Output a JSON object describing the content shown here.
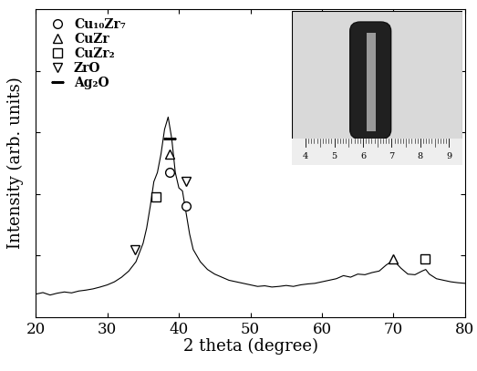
{
  "chart_data": {
    "type": "line",
    "x_label": "2 theta (degree)",
    "y_label": "Intensity (arb. units)",
    "xlim": [
      20,
      80
    ],
    "xticks": [
      20,
      30,
      40,
      50,
      60,
      70,
      80
    ],
    "ylim": [
      0,
      1
    ],
    "yticks": [
      0.2,
      0.4,
      0.6,
      0.8
    ],
    "tick_labels": "x",
    "legend": "upper left",
    "series": [
      {
        "type": "line",
        "color": "#000000",
        "x": [
          20,
          21,
          22,
          23,
          24,
          25,
          26,
          27,
          28,
          29,
          30,
          31,
          32,
          33,
          34,
          35,
          35.5,
          36,
          36.5,
          37,
          37.5,
          38,
          38.5,
          39,
          39.5,
          40,
          40.5,
          41,
          41.5,
          42,
          43,
          44,
          45,
          46,
          47,
          48,
          49,
          50,
          51,
          52,
          53,
          54,
          55,
          56,
          57,
          58,
          59,
          60,
          61,
          62,
          63,
          64,
          65,
          66,
          67,
          68,
          69,
          70,
          71,
          72,
          73,
          74,
          74.5,
          75,
          76,
          77,
          78,
          79,
          80
        ],
        "values": [
          0.075,
          0.08,
          0.072,
          0.078,
          0.082,
          0.079,
          0.085,
          0.088,
          0.092,
          0.098,
          0.105,
          0.115,
          0.13,
          0.15,
          0.18,
          0.24,
          0.29,
          0.36,
          0.44,
          0.47,
          0.53,
          0.61,
          0.65,
          0.58,
          0.47,
          0.42,
          0.41,
          0.34,
          0.27,
          0.22,
          0.18,
          0.155,
          0.14,
          0.13,
          0.12,
          0.115,
          0.11,
          0.105,
          0.1,
          0.102,
          0.098,
          0.1,
          0.103,
          0.1,
          0.105,
          0.108,
          0.11,
          0.115,
          0.12,
          0.125,
          0.135,
          0.13,
          0.14,
          0.138,
          0.145,
          0.15,
          0.17,
          0.185,
          0.16,
          0.14,
          0.138,
          0.15,
          0.155,
          0.14,
          0.125,
          0.12,
          0.115,
          0.112,
          0.11
        ]
      },
      {
        "type": "scatter",
        "name": "Cu₁₀Zr₇",
        "marker": "circle",
        "color": "#000000",
        "x": [
          38.7,
          41.0
        ],
        "values": [
          0.47,
          0.36
        ]
      },
      {
        "type": "scatter",
        "name": "CuZr",
        "marker": "triangle_up",
        "color": "#000000",
        "x": [
          38.7,
          70.0
        ],
        "values": [
          0.53,
          0.19
        ]
      },
      {
        "type": "scatter",
        "name": "CuZr₂",
        "marker": "square",
        "color": "#000000",
        "x": [
          36.8,
          74.4
        ],
        "values": [
          0.39,
          0.19
        ]
      },
      {
        "type": "scatter",
        "name": "ZrO",
        "marker": "triangle_down",
        "color": "#000000",
        "x": [
          33.9,
          41.0
        ],
        "values": [
          0.22,
          0.44
        ]
      },
      {
        "type": "scatter",
        "name": "Ag₂O",
        "marker": "heart",
        "color": "#000000",
        "x": [
          38.7
        ],
        "values": [
          0.58
        ]
      }
    ],
    "inset": {
      "ruler_labels": [
        4,
        5,
        6,
        7,
        8,
        9
      ]
    }
  }
}
